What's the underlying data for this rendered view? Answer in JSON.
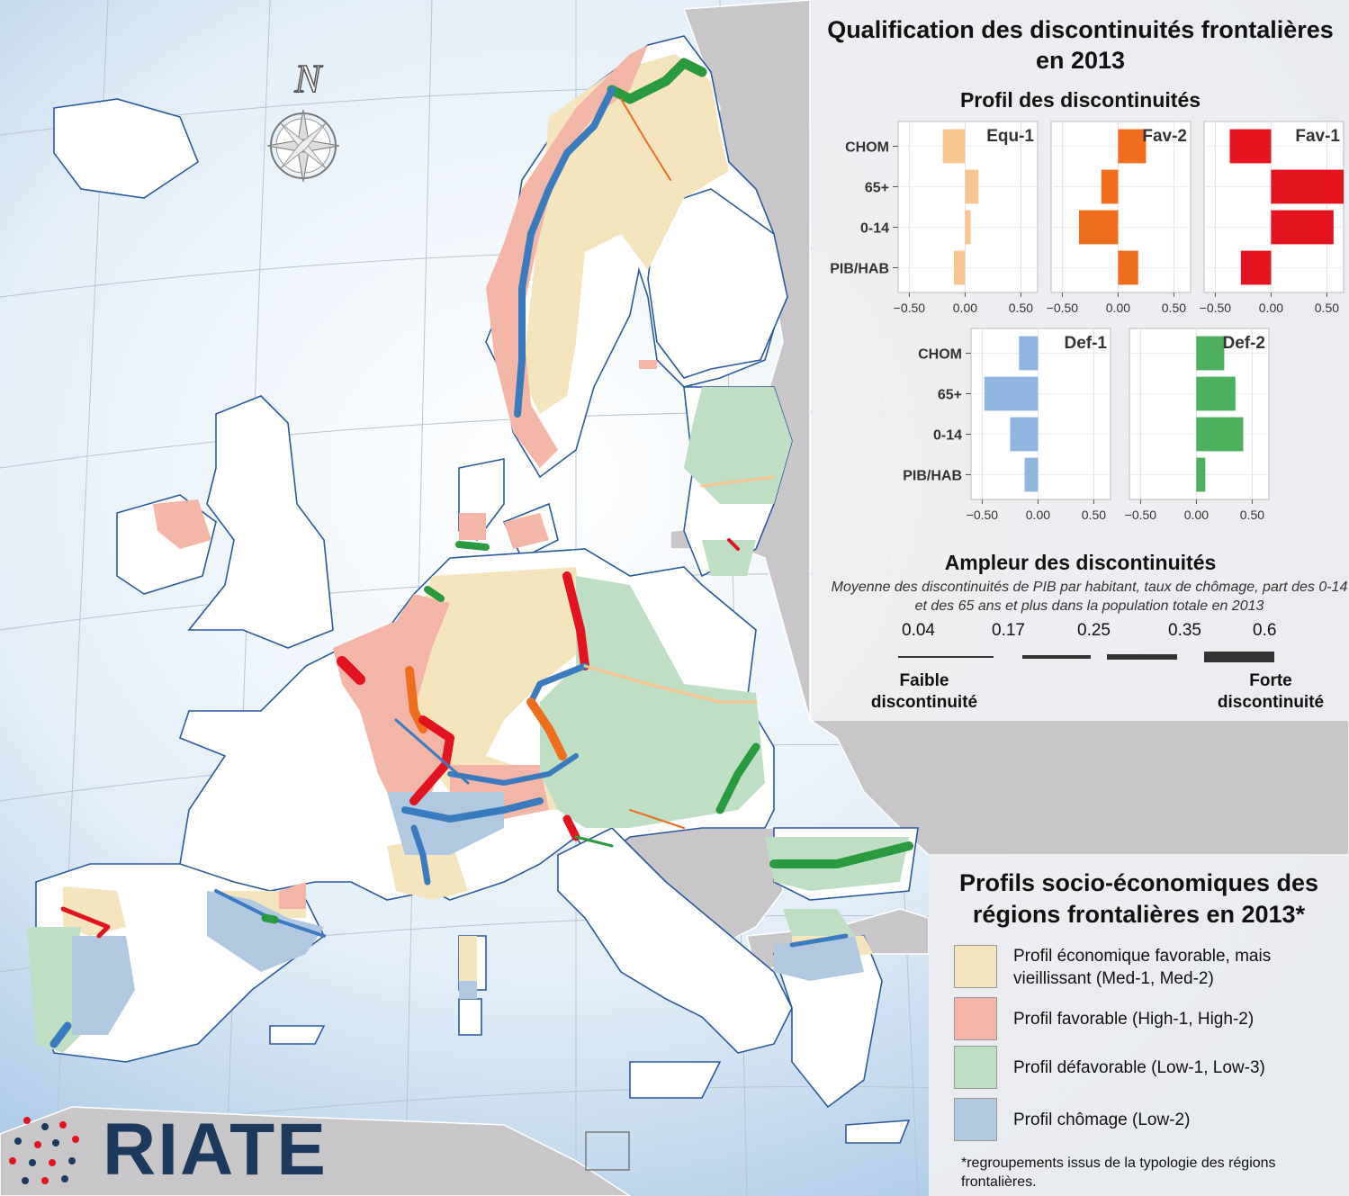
{
  "top_panel": {
    "title": "Qualification des discontinuités frontalières en 2013",
    "profile_title": "Profil des discontinuités",
    "ampleur_title": "Ampleur des discontinuités",
    "ampleur_subtitle": "Moyenne des discontinuités de PIB par habitant, taux de chômage, part des 0-14 et des 65 ans et plus dans la population totale en 2013",
    "bandwidths": [
      {
        "label": "0.04"
      },
      {
        "label": "0.17"
      },
      {
        "label": "0.25"
      },
      {
        "label": "0.35"
      },
      {
        "label": "0.6"
      }
    ],
    "low_label": "Faible discontinuité",
    "high_label": "Forte discontinuité"
  },
  "chart_data": {
    "type": "bar",
    "orientation": "horizontal",
    "categories": [
      "CHOM",
      "65+",
      "0-14",
      "PIB/HAB"
    ],
    "x_ticks": [
      "−0.50",
      "0.00",
      "0.50"
    ],
    "xlim": [
      -0.6,
      0.65
    ],
    "panels": [
      {
        "name": "Equ-1",
        "color": "#f9c58f",
        "values": [
          -0.2,
          0.12,
          0.05,
          -0.1
        ]
      },
      {
        "name": "Fav-2",
        "color": "#ee6e1e",
        "values": [
          0.25,
          -0.15,
          -0.35,
          0.18
        ]
      },
      {
        "name": "Fav-1",
        "color": "#e3141f",
        "values": [
          -0.37,
          0.65,
          0.56,
          -0.27
        ]
      },
      {
        "name": "Def-1",
        "color": "#8fb6e0",
        "values": [
          -0.17,
          -0.48,
          -0.25,
          -0.12
        ]
      },
      {
        "name": "Def-2",
        "color": "#4db05c",
        "values": [
          0.25,
          0.35,
          0.42,
          0.08
        ]
      }
    ]
  },
  "legend": {
    "title": "Profils socio-économiques des régions frontalières en 2013*",
    "items": [
      {
        "label": "Profil économique favorable, mais vieillissant (Med-1, Med-2)",
        "color": "#f5e5bd"
      },
      {
        "label": "Profil favorable (High-1, High-2)",
        "color": "#f3b5a5"
      },
      {
        "label": "Profil défavorable (Low-1, Low-3)",
        "color": "#bfdfc4"
      },
      {
        "label": "Profil chômage (Low-2)",
        "color": "#b0c8e0"
      }
    ],
    "footnote": "*regroupements issus de la typologie des régions frontalières."
  },
  "compass": {
    "label": "N"
  },
  "logo": {
    "text": "RIATE"
  }
}
